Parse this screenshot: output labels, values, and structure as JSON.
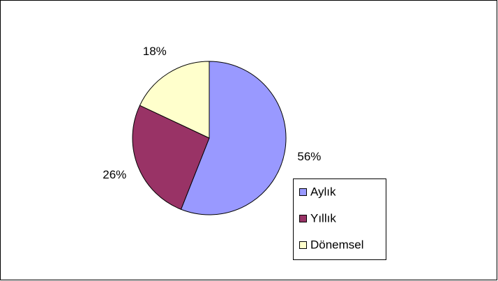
{
  "chart_data": {
    "type": "pie",
    "categories": [
      "Aylık",
      "Yıllık",
      "Dönemsel"
    ],
    "values": [
      56,
      26,
      18
    ],
    "value_labels": [
      "56%",
      "26%",
      "18%"
    ],
    "colors": [
      "#9999ff",
      "#993366",
      "#ffffcc"
    ],
    "legend": "right"
  }
}
